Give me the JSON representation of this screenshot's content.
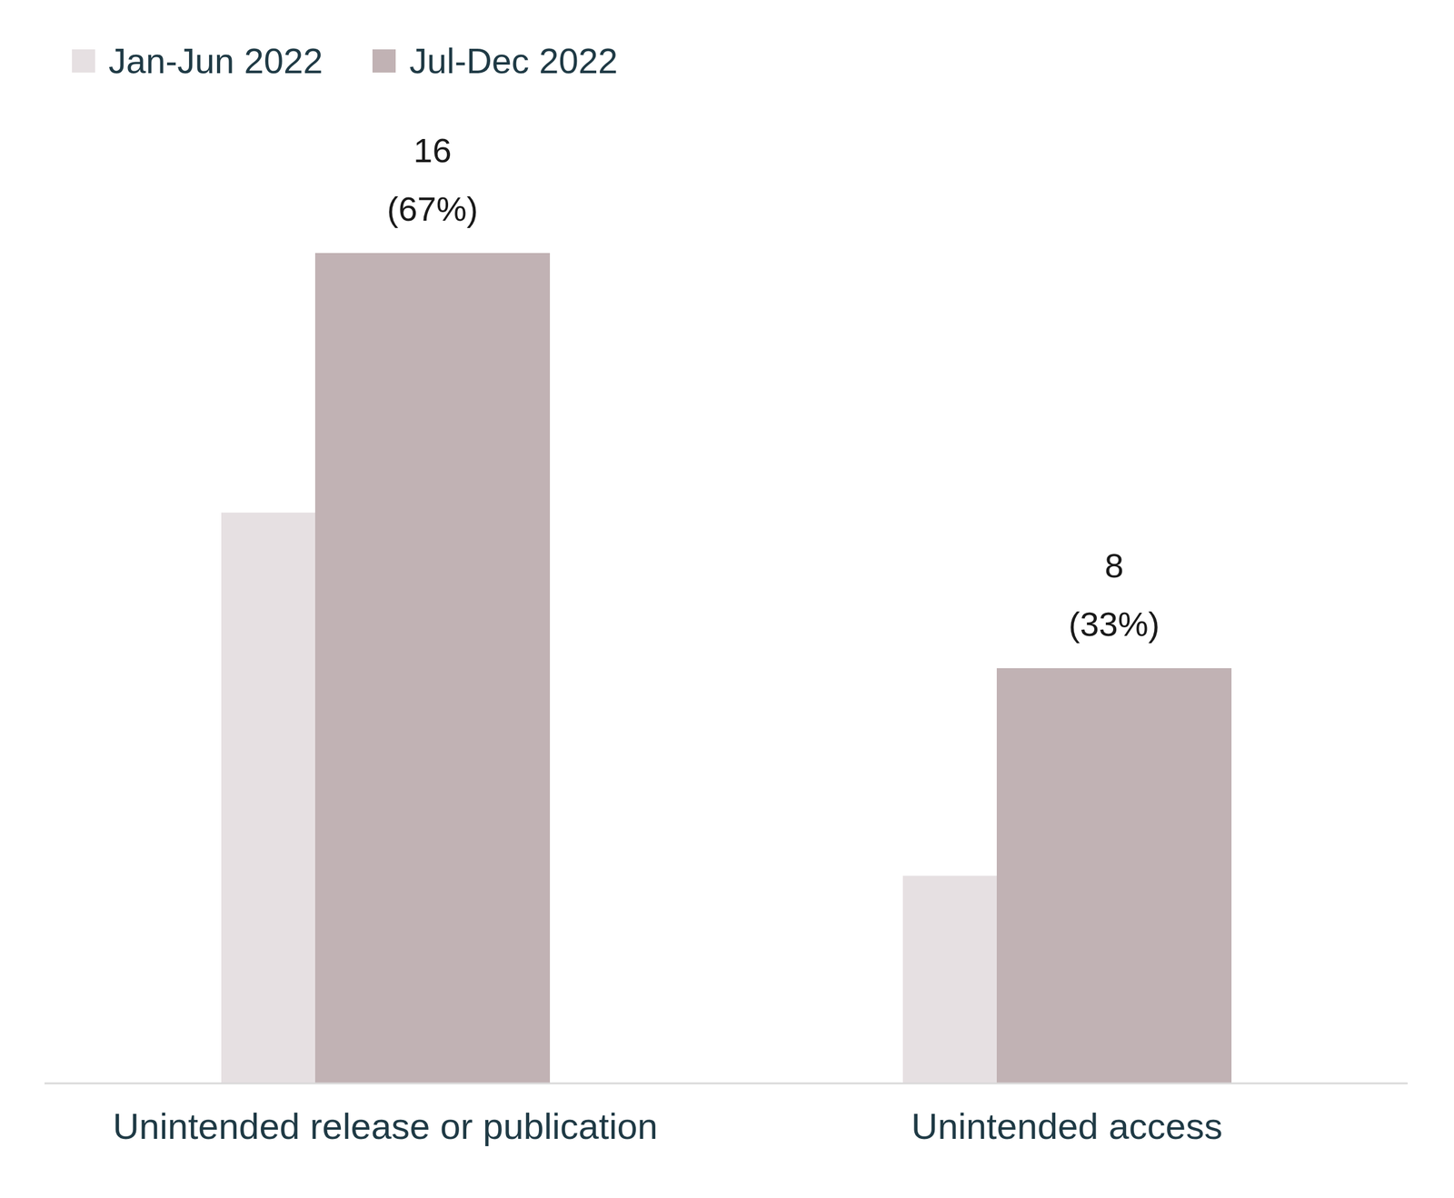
{
  "chart_data": {
    "type": "bar",
    "categories": [
      "Unintended release or publication",
      "Unintended access"
    ],
    "series": [
      {
        "name": "Jan-Jun 2022",
        "color": "#e6e0e2",
        "values": [
          11,
          4
        ]
      },
      {
        "name": "Jul-Dec 2022",
        "color": "#c1b2b4",
        "values": [
          16,
          8
        ],
        "data_labels": true,
        "value_labels": [
          "16 (67%)",
          "8 (33%)"
        ]
      }
    ],
    "ylim": [
      0,
      16
    ],
    "tick_labels": "x",
    "legend": "top left"
  }
}
